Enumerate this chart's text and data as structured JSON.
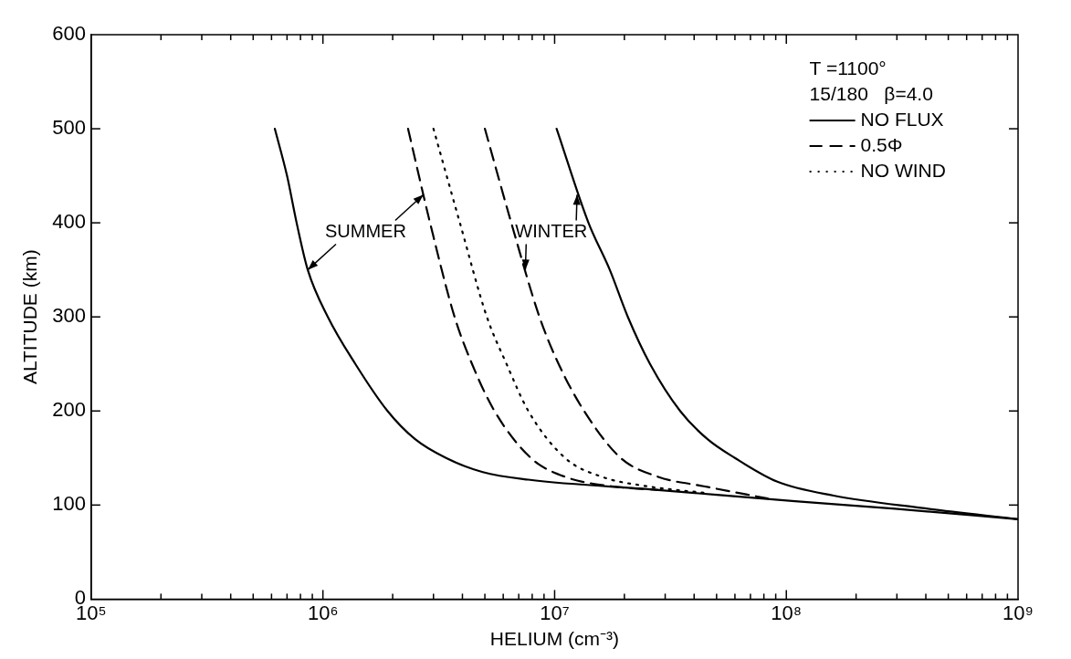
{
  "chart_data": {
    "type": "line",
    "xlabel": "HELIUM (cm⁻³)",
    "ylabel": "ALTITUDE (km)",
    "log": "x",
    "grid": false,
    "legend": "top right",
    "marker": "none",
    "xlim": [
      100000,
      1000000000
    ],
    "ylim": [
      0,
      600
    ],
    "yticks": [
      0,
      100,
      200,
      300,
      400,
      500,
      600
    ],
    "xticks": [
      {
        "value": 100000,
        "label": "10⁵"
      },
      {
        "value": 200000,
        "label": null
      },
      {
        "value": 300000,
        "label": null
      },
      {
        "value": 400000,
        "label": null
      },
      {
        "value": 500000,
        "label": null
      },
      {
        "value": 600000,
        "label": null
      },
      {
        "value": 700000,
        "label": null
      },
      {
        "value": 800000,
        "label": null
      },
      {
        "value": 900000,
        "label": null
      },
      {
        "value": 1000000,
        "label": "10⁶"
      },
      {
        "value": 2000000,
        "label": null
      },
      {
        "value": 3000000,
        "label": null
      },
      {
        "value": 4000000,
        "label": null
      },
      {
        "value": 5000000,
        "label": null
      },
      {
        "value": 6000000,
        "label": null
      },
      {
        "value": 7000000,
        "label": null
      },
      {
        "value": 8000000,
        "label": null
      },
      {
        "value": 9000000,
        "label": null
      },
      {
        "value": 10000000,
        "label": "10⁷"
      },
      {
        "value": 20000000,
        "label": null
      },
      {
        "value": 30000000,
        "label": null
      },
      {
        "value": 40000000,
        "label": null
      },
      {
        "value": 50000000,
        "label": null
      },
      {
        "value": 60000000,
        "label": null
      },
      {
        "value": 70000000,
        "label": null
      },
      {
        "value": 80000000,
        "label": null
      },
      {
        "value": 90000000,
        "label": null
      },
      {
        "value": 100000000,
        "label": "10⁸"
      },
      {
        "value": 200000000,
        "label": null
      },
      {
        "value": 300000000,
        "label": null
      },
      {
        "value": 400000000,
        "label": null
      },
      {
        "value": 500000000,
        "label": null
      },
      {
        "value": 600000000,
        "label": null
      },
      {
        "value": 700000000,
        "label": null
      },
      {
        "value": 800000000,
        "label": null
      },
      {
        "value": 900000000,
        "label": null
      },
      {
        "value": 1000000000,
        "label": "10⁹"
      }
    ],
    "series": [
      {
        "name": "NO FLUX",
        "color": "#000000",
        "line_style": "solid",
        "x": [
          620000,
          700000,
          770000,
          860000,
          1050000,
          1380000,
          1900000,
          2500000,
          3400000,
          4900000,
          7700000,
          28000000,
          109000000,
          295000000,
          1000000000
        ],
        "values": [
          500,
          450,
          400,
          350,
          300,
          250,
          200,
          170,
          150,
          135,
          127,
          116,
          104,
          96,
          85
        ]
      },
      {
        "color": "#000000",
        "line_style": "solid",
        "x": [
          10200000,
          14000000,
          17300000,
          20700000,
          25800000,
          34800000,
          45700000,
          60000000,
          91000000,
          160000000,
          380000000,
          1000000000
        ],
        "values": [
          500,
          400,
          350,
          300,
          250,
          200,
          170,
          150,
          125,
          110,
          97,
          85
        ]
      },
      {
        "name": "0.5Φ",
        "color": "#000000",
        "line_style": "dashed",
        "x": [
          2330000,
          2900000,
          3700000,
          4400000,
          5500000,
          7900000,
          11100000,
          17600000,
          28000000
        ],
        "values": [
          500,
          400,
          300,
          250,
          200,
          150,
          130,
          120,
          116
        ]
      },
      {
        "color": "#000000",
        "line_style": "dashed",
        "x": [
          5000000,
          6500000,
          8600000,
          10400000,
          13400000,
          19300000,
          28000000,
          44000000,
          83000000
        ],
        "values": [
          500,
          400,
          300,
          250,
          200,
          150,
          130,
          120,
          107
        ]
      },
      {
        "name": "NO WIND",
        "color": "#000000",
        "line_style": "dotted",
        "x": [
          3000000,
          3900000,
          5100000,
          6200000,
          7700000,
          11100000,
          16000000,
          25000000,
          44000000
        ],
        "values": [
          500,
          400,
          300,
          250,
          200,
          150,
          130,
          120,
          113
        ]
      }
    ],
    "annotations": [
      "T =1100°",
      "15/180   β=4.0",
      {
        "text": "SUMMER",
        "x": 860000,
        "y": 350
      },
      {
        "text": "WINTER",
        "x": 12500000,
        "y": 430
      }
    ]
  }
}
